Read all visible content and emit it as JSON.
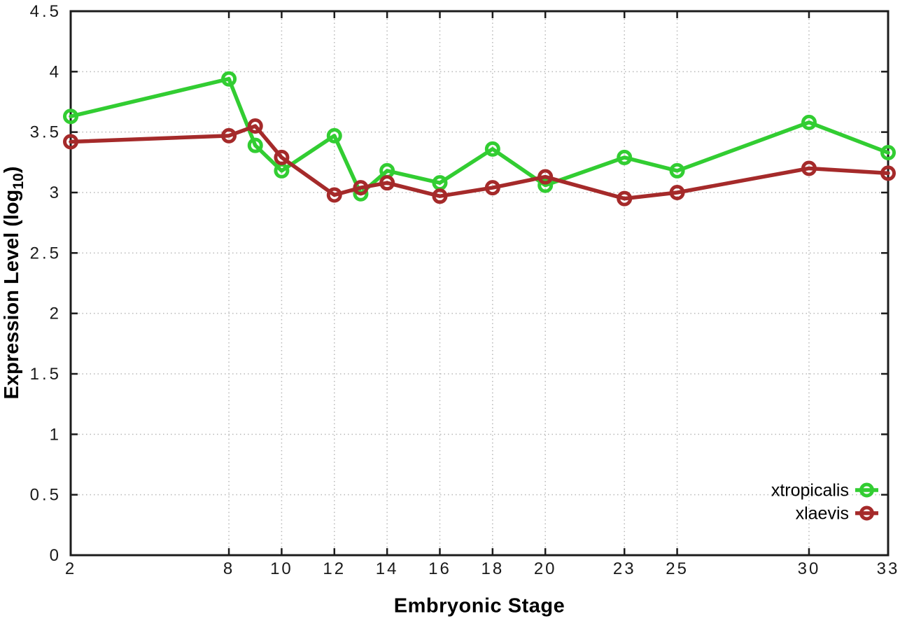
{
  "chart_data": {
    "type": "line",
    "title": "",
    "xlabel": "Embryonic Stage",
    "ylabel": "Expression Level (log10)",
    "ylabel_parts": {
      "pre": "Expression Level (log",
      "sub": "10",
      "post": ")"
    },
    "x": [
      2,
      8,
      9,
      10,
      12,
      13,
      14,
      16,
      18,
      20,
      23,
      25,
      30,
      33
    ],
    "series": [
      {
        "name": "xtropicalis",
        "color": "#32cd32",
        "values": [
          3.63,
          3.94,
          3.39,
          3.18,
          3.47,
          2.99,
          3.18,
          3.08,
          3.36,
          3.06,
          3.29,
          3.18,
          3.58,
          3.33
        ]
      },
      {
        "name": "xlaevis",
        "color": "#a52a2a",
        "values": [
          3.42,
          3.47,
          3.55,
          3.29,
          2.98,
          3.04,
          3.08,
          2.97,
          3.04,
          3.13,
          2.95,
          3.0,
          3.2,
          3.16
        ]
      }
    ],
    "xlim": [
      2,
      33
    ],
    "ylim": [
      0,
      4.5
    ],
    "xticks": {
      "values": [
        2,
        8,
        10,
        12,
        14,
        16,
        18,
        20,
        23,
        25,
        30,
        33
      ],
      "labels": [
        "2",
        "8",
        "10",
        "12",
        "14",
        "16",
        "18",
        "20",
        "23",
        "25",
        "30",
        "33"
      ]
    },
    "yticks": {
      "values": [
        0,
        0.5,
        1,
        1.5,
        2,
        2.5,
        3,
        3.5,
        4,
        4.5
      ],
      "labels": [
        "0",
        "0.5",
        "1",
        "1.5",
        "2",
        "2.5",
        "3",
        "3.5",
        "4",
        "4.5"
      ]
    },
    "grid": true,
    "legend_position": "bottom-right",
    "colors": {
      "background": "#ffffff",
      "grid": "#b8b8b8",
      "axis": "#1c1c1c",
      "tick_text": "#1a1a1a",
      "legend_text": "#000000"
    }
  }
}
